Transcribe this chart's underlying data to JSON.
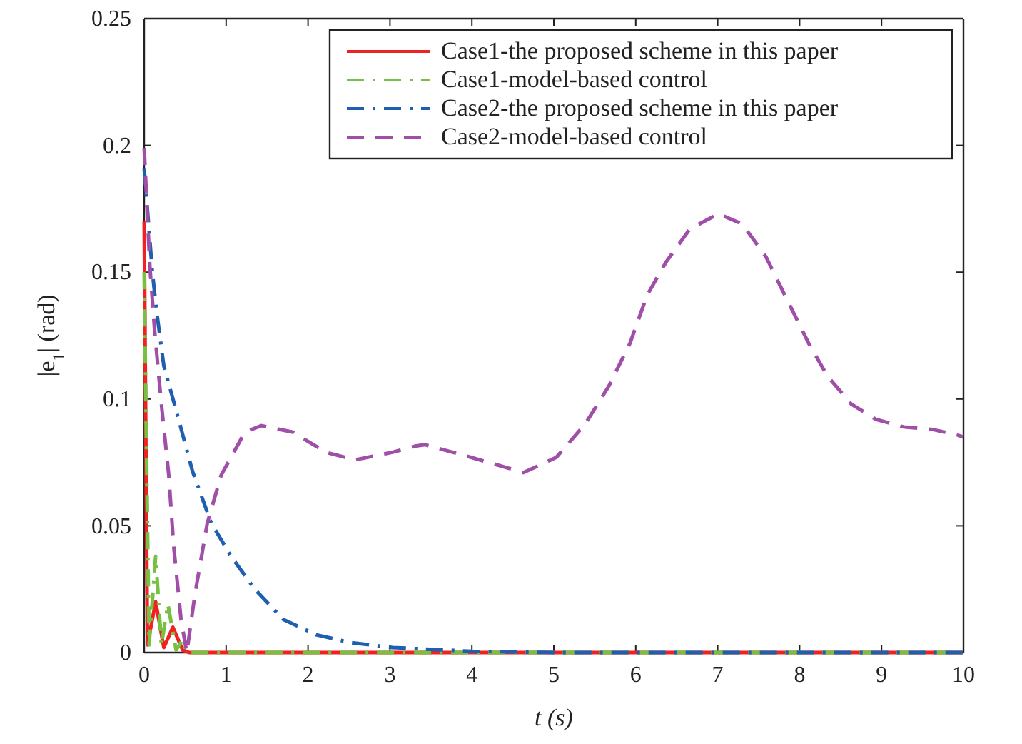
{
  "chart_data": {
    "type": "line",
    "xlabel": "t (s)",
    "ylabel": "|e$_{1}$| (rad)",
    "xlim": [
      0,
      10
    ],
    "ylim": [
      0,
      0.25
    ],
    "xticks": [
      0,
      1,
      2,
      3,
      4,
      5,
      6,
      7,
      8,
      9,
      10
    ],
    "yticks": [
      0,
      0.05,
      0.1,
      0.15,
      0.2,
      0.25
    ],
    "grid": false,
    "legend": "top right",
    "marker": "none",
    "series": [
      {
        "name": "Case1-the proposed scheme in this paper",
        "color": "#ee2222",
        "line_style": "solid",
        "x": [
          0,
          0.04,
          0.14,
          0.24,
          0.35,
          0.47,
          0.55,
          1,
          2,
          3,
          4,
          5,
          6,
          7,
          8,
          9,
          10
        ],
        "values": [
          0.17,
          0.003,
          0.02,
          0.002,
          0.01,
          0.001,
          0,
          0,
          0,
          0,
          0,
          0,
          0,
          0,
          0,
          0,
          0
        ]
      },
      {
        "name": "Case1-model-based control",
        "color": "#77c043",
        "line_style": "dashdot",
        "x": [
          0,
          0.06,
          0.14,
          0.21,
          0.29,
          0.39,
          0.47,
          0.52,
          1,
          2,
          3,
          4,
          5,
          6,
          7,
          8,
          9,
          10
        ],
        "values": [
          0.15,
          0.003,
          0.038,
          0.003,
          0.019,
          0.001,
          0.005,
          0,
          0,
          0,
          0,
          0,
          0,
          0,
          0,
          0,
          0,
          0
        ]
      },
      {
        "name": "Case2-the proposed scheme in this paper",
        "color": "#1f5fb0",
        "line_style": "dashdot",
        "x": [
          0,
          0.1,
          0.15,
          0.24,
          0.42,
          0.59,
          0.82,
          1.06,
          1.35,
          1.7,
          2.1,
          2.51,
          3.03,
          4,
          5,
          6,
          7,
          8,
          9,
          10
        ],
        "values": [
          0.191,
          0.15,
          0.135,
          0.113,
          0.092,
          0.0715,
          0.051,
          0.038,
          0.025,
          0.013,
          0.007,
          0.004,
          0.002,
          0.0005,
          0,
          0,
          0,
          0,
          0,
          0
        ]
      },
      {
        "name": "Case2-model-based control",
        "color": "#a04fa8",
        "line_style": "dashed",
        "x": [
          0,
          0.07,
          0.13,
          0.21,
          0.3,
          0.36,
          0.45,
          0.52,
          0.62,
          0.77,
          0.94,
          1.23,
          1.43,
          1.81,
          2.22,
          2.57,
          3.03,
          3.32,
          3.43,
          3.99,
          4.63,
          5.03,
          5.38,
          5.67,
          5.93,
          6.14,
          6.37,
          6.66,
          7.01,
          7.3,
          7.59,
          7.88,
          8.11,
          8.34,
          8.63,
          8.93,
          9.27,
          9.62,
          9.91,
          10
        ],
        "values": [
          0.199,
          0.152,
          0.126,
          0.098,
          0.07,
          0.042,
          0.013,
          0,
          0.023,
          0.051,
          0.07,
          0.087,
          0.0895,
          0.087,
          0.079,
          0.076,
          0.079,
          0.0815,
          0.082,
          0.077,
          0.071,
          0.077,
          0.09,
          0.105,
          0.122,
          0.141,
          0.154,
          0.167,
          0.173,
          0.169,
          0.156,
          0.137,
          0.122,
          0.109,
          0.098,
          0.092,
          0.089,
          0.088,
          0.086,
          0.085
        ]
      }
    ]
  }
}
